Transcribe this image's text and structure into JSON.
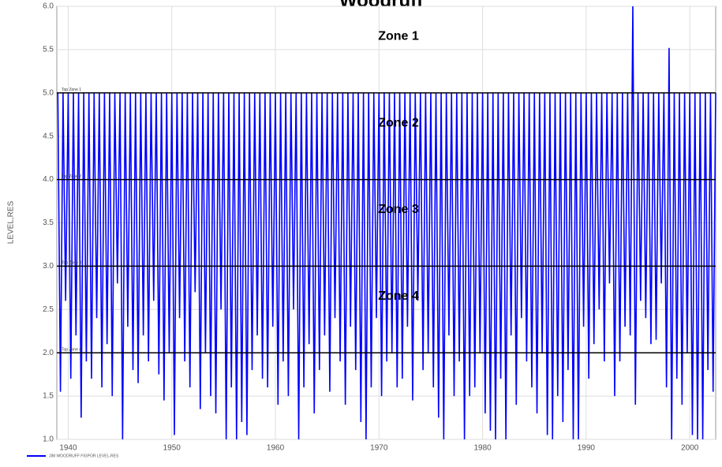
{
  "chart_data": {
    "type": "line",
    "title": "Woodruff",
    "y_label": "LEVEL,RES",
    "xlim": [
      1938.9,
      2002.5
    ],
    "ylim": [
      1.0,
      6.0
    ],
    "xticks": [
      1940,
      1950,
      1960,
      1970,
      1980,
      1990,
      2000
    ],
    "yticks": [
      {
        "value": 1.0,
        "label": "1.0"
      },
      1.5,
      {
        "value": 2.0,
        "label": "2.0"
      },
      2.5,
      {
        "value": 3.0,
        "label": "3.0"
      },
      3.5,
      {
        "value": 4.0,
        "label": "4.0"
      },
      4.5,
      {
        "value": 5.0,
        "label": "5.0"
      },
      5.5,
      {
        "value": 6.0,
        "label": "6.0"
      }
    ],
    "grid": true,
    "zones": [
      {
        "value": 5.0,
        "label": "Top Zone 1",
        "name": "Zone 1"
      },
      {
        "value": 4.0,
        "label": "Top Zone 2",
        "name": "Zone 2"
      },
      {
        "value": 3.0,
        "label": "Top Zone 3",
        "name": "Zone 3"
      },
      {
        "value": 2.0,
        "label": "Top Zone 4",
        "name": "Zone 4"
      }
    ],
    "series": [
      {
        "name": "JIM WOODRUFF FIGPOR LEVEL-RES",
        "color": "#0000ff",
        "x": [
          1939,
          1939.25,
          1939.5,
          1939.75,
          1940,
          1940.25,
          1940.5,
          1940.75,
          1941,
          1941.25,
          1941.5,
          1941.75,
          1942,
          1942.25,
          1942.5,
          1942.75,
          1943,
          1943.25,
          1943.5,
          1943.75,
          1944,
          1944.25,
          1944.5,
          1944.75,
          1945,
          1945.25,
          1945.5,
          1945.75,
          1946,
          1946.25,
          1946.5,
          1946.75,
          1947,
          1947.25,
          1947.5,
          1947.75,
          1948,
          1948.25,
          1948.5,
          1948.75,
          1949,
          1949.25,
          1949.5,
          1949.75,
          1950,
          1950.25,
          1950.5,
          1950.75,
          1951,
          1951.25,
          1951.5,
          1951.75,
          1952,
          1952.25,
          1952.5,
          1952.75,
          1953,
          1953.25,
          1953.5,
          1953.75,
          1954,
          1954.25,
          1954.5,
          1954.75,
          1955,
          1955.25,
          1955.5,
          1955.75,
          1956,
          1956.25,
          1956.5,
          1956.75,
          1957,
          1957.25,
          1957.5,
          1957.75,
          1958,
          1958.25,
          1958.5,
          1958.75,
          1959,
          1959.25,
          1959.5,
          1959.75,
          1960,
          1960.25,
          1960.5,
          1960.75,
          1961,
          1961.25,
          1961.5,
          1961.75,
          1962,
          1962.25,
          1962.5,
          1962.75,
          1963,
          1963.25,
          1963.5,
          1963.75,
          1964,
          1964.25,
          1964.5,
          1964.75,
          1965,
          1965.25,
          1965.5,
          1965.75,
          1966,
          1966.25,
          1966.5,
          1966.75,
          1967,
          1967.25,
          1967.5,
          1967.75,
          1968,
          1968.25,
          1968.5,
          1968.75,
          1969,
          1969.25,
          1969.5,
          1969.75,
          1970,
          1970.25,
          1970.5,
          1970.75,
          1971,
          1971.25,
          1971.5,
          1971.75,
          1972,
          1972.25,
          1972.5,
          1972.75,
          1973,
          1973.25,
          1973.5,
          1973.75,
          1974,
          1974.25,
          1974.5,
          1974.75,
          1975,
          1975.25,
          1975.5,
          1975.75,
          1976,
          1976.25,
          1976.5,
          1976.75,
          1977,
          1977.25,
          1977.5,
          1977.75,
          1978,
          1978.25,
          1978.5,
          1978.75,
          1979,
          1979.25,
          1979.5,
          1979.75,
          1980,
          1980.25,
          1980.5,
          1980.75,
          1981,
          1981.25,
          1981.5,
          1981.75,
          1982,
          1982.25,
          1982.5,
          1982.75,
          1983,
          1983.25,
          1983.5,
          1983.75,
          1984,
          1984.25,
          1984.5,
          1984.75,
          1985,
          1985.25,
          1985.5,
          1985.75,
          1986,
          1986.25,
          1986.5,
          1986.75,
          1987,
          1987.25,
          1987.5,
          1987.75,
          1988,
          1988.25,
          1988.5,
          1988.75,
          1989,
          1989.25,
          1989.5,
          1989.75,
          1990,
          1990.25,
          1990.5,
          1990.75,
          1991,
          1991.25,
          1991.5,
          1991.75,
          1992,
          1992.25,
          1992.5,
          1992.75,
          1993,
          1993.25,
          1993.5,
          1993.75,
          1994,
          1994.25,
          1994.5,
          1994.75,
          1995,
          1995.25,
          1995.5,
          1995.75,
          1996,
          1996.25,
          1996.5,
          1996.75,
          1997,
          1997.25,
          1997.5,
          1997.75,
          1998,
          1998.25,
          1998.5,
          1998.75,
          1999,
          1999.25,
          1999.5,
          1999.75,
          2000,
          2000.25,
          2000.5,
          2000.75,
          2001,
          2001.25,
          2001.5,
          2001.75,
          2002,
          2002.25,
          2002.5
        ],
        "values": [
          5,
          1.55,
          5,
          2.6,
          5,
          1.7,
          5,
          2.2,
          5,
          1.25,
          5,
          1.9,
          5,
          1.7,
          5,
          2.4,
          5,
          1.6,
          5,
          2.1,
          5,
          1.5,
          5,
          2.8,
          5,
          1.0,
          5,
          2.3,
          5,
          1.8,
          5,
          1.65,
          5,
          2.2,
          5,
          1.9,
          5,
          2.6,
          5,
          1.75,
          5,
          1.45,
          5,
          2.0,
          5,
          1.05,
          5,
          2.4,
          5,
          1.9,
          5,
          1.6,
          5,
          2.7,
          5,
          1.35,
          5,
          2.0,
          5,
          1.5,
          5,
          1.3,
          5,
          2.5,
          5,
          1.0,
          5,
          1.6,
          5,
          1.0,
          5,
          1.2,
          5,
          1.05,
          5,
          1.8,
          5,
          2.2,
          5,
          1.7,
          5,
          1.6,
          5,
          2.3,
          5,
          1.4,
          5,
          1.9,
          5,
          1.5,
          5,
          2.5,
          5,
          1.0,
          5,
          1.6,
          5,
          2.1,
          5,
          1.3,
          5,
          1.8,
          5,
          2.2,
          5,
          1.55,
          5,
          2.4,
          5,
          1.9,
          5,
          1.4,
          5,
          2.3,
          5,
          1.8,
          5,
          1.2,
          5,
          1.0,
          5,
          1.6,
          5,
          2.4,
          5,
          1.5,
          5,
          1.9,
          5,
          2.0,
          5,
          1.6,
          5,
          1.7,
          5,
          2.3,
          5,
          1.45,
          5,
          2.6,
          5,
          1.8,
          5,
          2.0,
          5,
          1.6,
          5,
          1.25,
          5,
          1.0,
          5,
          2.2,
          5,
          1.5,
          5,
          1.9,
          5,
          1.0,
          5,
          1.5,
          5,
          1.6,
          5,
          2.0,
          5,
          1.3,
          5,
          1.1,
          5,
          1.0,
          5,
          1.7,
          5,
          1.0,
          5,
          2.2,
          5,
          1.4,
          5,
          2.4,
          5,
          1.9,
          5,
          1.6,
          5,
          1.3,
          5,
          2.0,
          5,
          1.05,
          5,
          1.0,
          5,
          1.5,
          5,
          1.2,
          5,
          1.8,
          5,
          1.0,
          5,
          1.0,
          5,
          2.3,
          5,
          1.7,
          5,
          2.1,
          5,
          2.5,
          5,
          1.9,
          5,
          2.8,
          5,
          1.5,
          5,
          1.9,
          5,
          2.3,
          5,
          2.2,
          6.0,
          1.4,
          5,
          2.6,
          5,
          2.4,
          5,
          2.1,
          5,
          2.15,
          5,
          2.8,
          5,
          1.6,
          5.52,
          1.0,
          5,
          1.7,
          5,
          1.4,
          5,
          2.0,
          5,
          1.05,
          5,
          1.0,
          5,
          1.0,
          5,
          1.8,
          5,
          1.55,
          5
        ]
      }
    ]
  }
}
